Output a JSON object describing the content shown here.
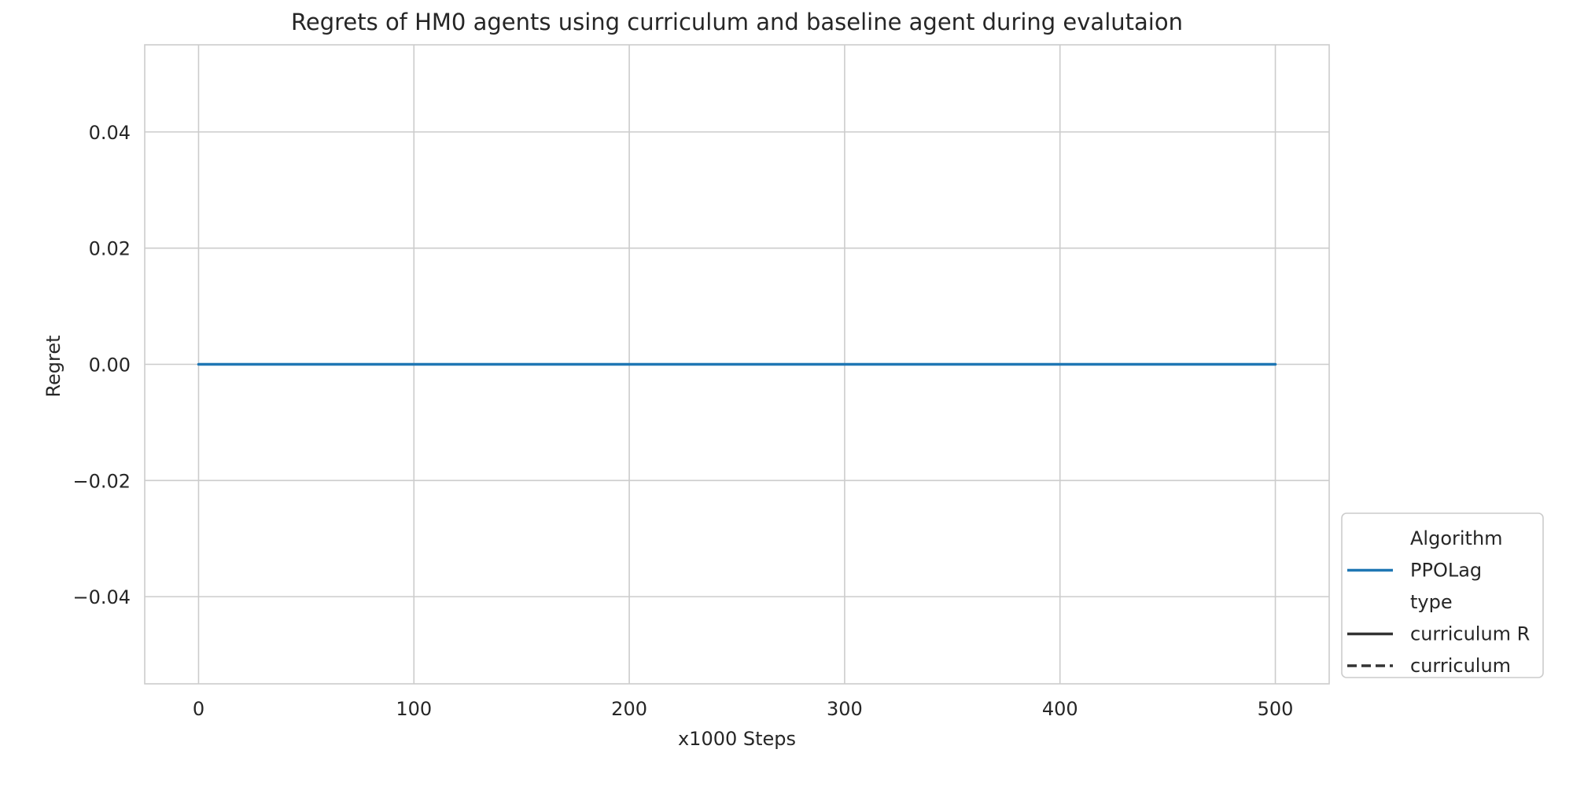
{
  "chart_data": {
    "type": "line",
    "title": "Regrets of HM0 agents using curriculum and baseline agent during evalutaion",
    "xlabel": "x1000 Steps",
    "ylabel": "Regret",
    "xlim": [
      -25,
      525
    ],
    "ylim": [
      -0.055,
      0.055
    ],
    "x_ticks": [
      0,
      100,
      200,
      300,
      400,
      500
    ],
    "x_tick_labels": [
      "0",
      "100",
      "200",
      "300",
      "400",
      "500"
    ],
    "y_ticks": [
      -0.04,
      -0.02,
      0.0,
      0.02,
      0.04
    ],
    "y_tick_labels": [
      "−0.04",
      "−0.02",
      "0.00",
      "0.02",
      "0.04"
    ],
    "grid": true,
    "series": [
      {
        "name": "PPOLag",
        "color": "#1f77b4",
        "linestyle": "solid",
        "x": [
          0,
          50,
          100,
          150,
          200,
          250,
          300,
          350,
          400,
          450,
          500
        ],
        "y": [
          0,
          0,
          0,
          0,
          0,
          0,
          0,
          0,
          0,
          0,
          0
        ]
      }
    ],
    "legend": {
      "placement": "right-bottom-outside",
      "sections": [
        {
          "title": "Algorithm",
          "entries": [
            {
              "label": "PPOLag",
              "color": "#1f77b4",
              "linestyle": "solid"
            }
          ]
        },
        {
          "title": "type",
          "entries": [
            {
              "label": "curriculum R",
              "color": "#333333",
              "linestyle": "solid"
            },
            {
              "label": "curriculum",
              "color": "#333333",
              "linestyle": "dashed"
            }
          ]
        }
      ]
    }
  }
}
